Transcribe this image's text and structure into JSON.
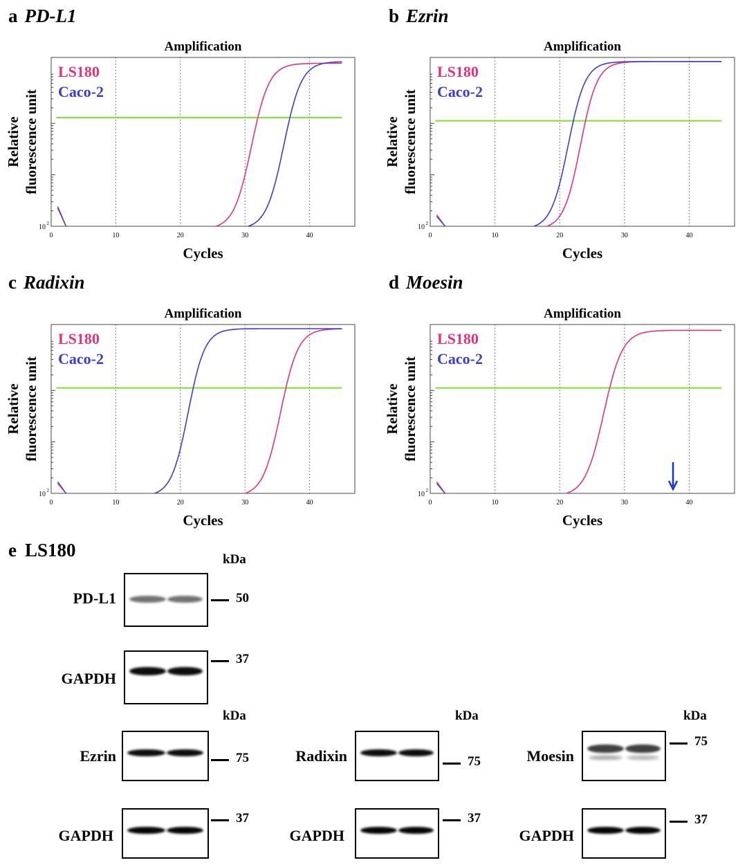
{
  "colors": {
    "ls180": "#e8307a",
    "caco2": "#3b3bd6",
    "threshold": "#7de02a",
    "grid": "#555555",
    "arrow": "#1030e0"
  },
  "panels": [
    {
      "letter": "a",
      "gene": "PD-L1",
      "chart_data": {
        "type": "line",
        "title": "Amplification",
        "xlabel": "Cycles",
        "ylabel_line1": "Relative",
        "ylabel_line2": "fluorescence unit",
        "y_tick": "10",
        "y_tick_exp": "2",
        "xlim": [
          0,
          47
        ],
        "xticks": [
          "0",
          "10",
          "20",
          "30",
          "40"
        ],
        "threshold_level": 0.66,
        "series": [
          {
            "name": "LS180",
            "onset": 25.5,
            "midpoint": 31.0,
            "plateau": 45,
            "start_level": 0.11,
            "end_level": 0.99
          },
          {
            "name": "Caco-2",
            "onset": 30.5,
            "midpoint": 36.0,
            "plateau": 45,
            "start_level": 0.12,
            "end_level": 1.0
          }
        ]
      }
    },
    {
      "letter": "b",
      "gene": "Ezrin",
      "chart_data": {
        "type": "line",
        "title": "Amplification",
        "xlabel": "Cycles",
        "ylabel_line1": "Relative",
        "ylabel_line2": "fluorescence unit",
        "y_tick": "10",
        "y_tick_exp": "2",
        "xlim": [
          0,
          47
        ],
        "xticks": [
          "0",
          "10",
          "20",
          "30",
          "40"
        ],
        "threshold_level": 0.64,
        "series": [
          {
            "name": "LS180",
            "onset": 18.0,
            "midpoint": 23.2,
            "plateau": 45,
            "start_level": 0.07,
            "end_level": 1.0
          },
          {
            "name": "Caco-2",
            "onset": 16.0,
            "midpoint": 21.3,
            "plateau": 45,
            "start_level": 0.06,
            "end_level": 1.0
          }
        ]
      }
    },
    {
      "letter": "c",
      "gene": "Radixin",
      "chart_data": {
        "type": "line",
        "title": "Amplification",
        "xlabel": "Cycles",
        "ylabel_line1": "Relative",
        "ylabel_line2": "fluorescence unit",
        "y_tick": "10",
        "y_tick_exp": "2",
        "xlim": [
          0,
          47
        ],
        "xticks": [
          "0",
          "10",
          "20",
          "30",
          "40"
        ],
        "threshold_level": 0.64,
        "series": [
          {
            "name": "LS180",
            "onset": 30.0,
            "midpoint": 35.5,
            "plateau": 45,
            "start_level": 0.06,
            "end_level": 1.0
          },
          {
            "name": "Caco-2",
            "onset": 16.0,
            "midpoint": 21.2,
            "plateau": 45,
            "start_level": 0.07,
            "end_level": 1.0
          }
        ]
      }
    },
    {
      "letter": "d",
      "gene": "Moesin",
      "chart_data": {
        "type": "line",
        "title": "Amplification",
        "xlabel": "Cycles",
        "ylabel_line1": "Relative",
        "ylabel_line2": "fluorescence unit",
        "y_tick": "10",
        "y_tick_exp": "2",
        "xlim": [
          0,
          47
        ],
        "xticks": [
          "0",
          "10",
          "20",
          "30",
          "40"
        ],
        "threshold_level": 0.64,
        "arrow_at_cycle": 37.5,
        "series": [
          {
            "name": "LS180",
            "onset": 21.0,
            "midpoint": 26.8,
            "plateau": 45,
            "start_level": 0.07,
            "end_level": 0.99
          },
          {
            "name": "Caco-2",
            "onset": null,
            "midpoint": null,
            "plateau": 45,
            "start_level": 0.06,
            "end_level": 0.0
          }
        ]
      }
    }
  ],
  "western": {
    "letter": "e",
    "cell_line": "LS180",
    "kda_label": "kDa",
    "blots": [
      {
        "id": "pdl1",
        "label": "PD-L1",
        "marker": "50",
        "band_intensity": 0.55
      },
      {
        "id": "gapdh1",
        "label": "GAPDH",
        "marker": "37",
        "band_intensity": 0.95
      },
      {
        "id": "ezrin",
        "label": "Ezrin",
        "marker": "75",
        "band_intensity": 0.95
      },
      {
        "id": "gapdh2",
        "label": "GAPDH",
        "marker": "37",
        "band_intensity": 0.98
      },
      {
        "id": "radixin",
        "label": "Radixin",
        "marker": "75",
        "band_intensity": 0.95
      },
      {
        "id": "gapdh3",
        "label": "GAPDH",
        "marker": "37",
        "band_intensity": 0.98
      },
      {
        "id": "moesin",
        "label": "Moesin",
        "marker": "75",
        "band_intensity": 0.75
      },
      {
        "id": "gapdh4",
        "label": "GAPDH",
        "marker": "37",
        "band_intensity": 0.98
      }
    ]
  }
}
